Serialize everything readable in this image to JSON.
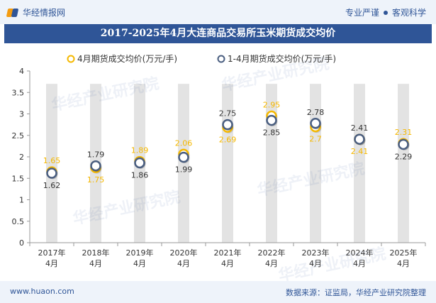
{
  "header": {
    "brand": "华经情报网",
    "tagline_left": "专业严谨",
    "tagline_right": "客观科学"
  },
  "footer": {
    "url": "www.huaon.com",
    "source": "数据来源：证监局，华经产业研究院整理"
  },
  "watermark": "华经产业研究院",
  "colors": {
    "title_bg": "#2f5597",
    "series1": "#f5b800",
    "series2": "#4a5e80",
    "band": "#e3e3e3"
  },
  "chart_data": {
    "type": "scatter",
    "title": "2017-2025年4月大连商品交易所玉米期货成交均价",
    "categories": [
      "2017年4月",
      "2018年4月",
      "2019年4月",
      "2020年4月",
      "2021年4月",
      "2022年4月",
      "2023年4月",
      "2024年4月",
      "2025年4月"
    ],
    "category_lines": [
      [
        "2017年",
        "4月"
      ],
      [
        "2018年",
        "4月"
      ],
      [
        "2019年",
        "4月"
      ],
      [
        "2020年",
        "4月"
      ],
      [
        "2021年",
        "4月"
      ],
      [
        "2022年",
        "4月"
      ],
      [
        "2023年",
        "4月"
      ],
      [
        "2024年",
        "4月"
      ],
      [
        "2025年",
        "4月"
      ]
    ],
    "ylim": [
      0,
      4
    ],
    "yticks": [
      "0",
      "0.5",
      "1",
      "1.5",
      "2",
      "2.5",
      "3",
      "3.5",
      "4"
    ],
    "legend_position": "top",
    "series": [
      {
        "name": "4月期货成交均价(万元/手)",
        "values": [
          1.65,
          1.75,
          1.89,
          2.06,
          2.69,
          2.95,
          2.7,
          2.41,
          2.31
        ],
        "labels": [
          "1.65",
          "1.75",
          "1.89",
          "2.06",
          "2.69",
          "2.95",
          "2.7",
          "2.41",
          "2.31"
        ]
      },
      {
        "name": "1-4月期货成交均价(万元/手)",
        "values": [
          1.62,
          1.79,
          1.86,
          1.99,
          2.75,
          2.85,
          2.78,
          2.41,
          2.29
        ],
        "labels": [
          "1.62",
          "1.79",
          "1.86",
          "1.99",
          "2.75",
          "2.85",
          "2.78",
          "2.41",
          "2.29"
        ]
      }
    ]
  }
}
